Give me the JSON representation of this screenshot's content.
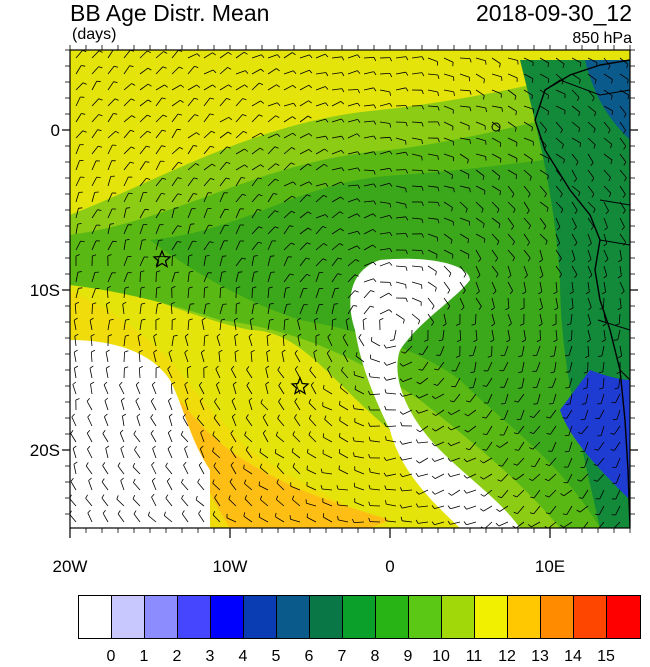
{
  "header": {
    "title": "BB Age Distr. Mean",
    "units": "(days)",
    "date": "2018-09-30_12",
    "level": "850 hPa"
  },
  "axes": {
    "lat_labels": [
      "0",
      "10S",
      "20S"
    ],
    "lon_labels": [
      "20W",
      "10W",
      "0",
      "10E"
    ]
  },
  "colorbar": {
    "labels": [
      "0",
      "1",
      "2",
      "3",
      "4",
      "5",
      "6",
      "7",
      "8",
      "9",
      "10",
      "11",
      "12",
      "13",
      "14",
      "15"
    ],
    "colors": [
      "#ffffff",
      "#c8c8ff",
      "#8c8cff",
      "#4646ff",
      "#0000ff",
      "#0a3cb4",
      "#0a5a8c",
      "#0a7846",
      "#0aa02a",
      "#28b414",
      "#5ac814",
      "#a0d80a",
      "#f0f000",
      "#ffc800",
      "#ff8c00",
      "#ff4600",
      "#ff0000"
    ]
  },
  "markers": [
    "star",
    "star"
  ]
}
